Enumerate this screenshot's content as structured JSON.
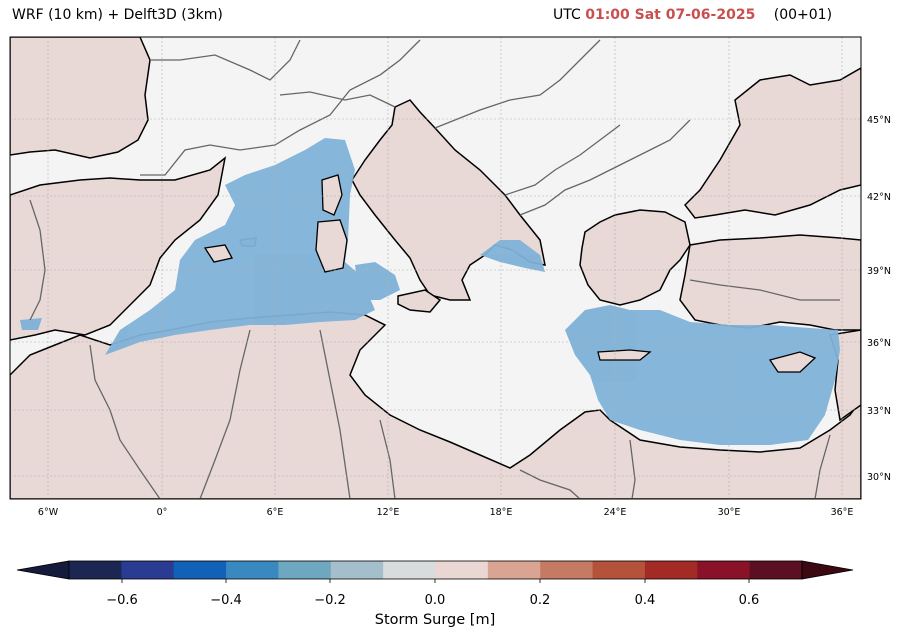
{
  "title_left": "WRF (10 km) + Delft3D (3km)",
  "title_right": {
    "prefix": "UTC",
    "time": "01:00 Sat 07-06-2025",
    "offset": "(00+01)",
    "highlight_color": "#c9504f"
  },
  "map": {
    "region": "Mediterranean Sea",
    "lon_ticks": [
      "6°W",
      "0°",
      "6°E",
      "12°E",
      "18°E",
      "24°E",
      "30°E",
      "36°E"
    ],
    "lat_ticks": [
      "45°N",
      "42°N",
      "39°N",
      "36°N",
      "33°N",
      "30°N"
    ],
    "gridlines": true,
    "colors": {
      "land": "#e8d9d6",
      "sea_surge": "#7fb2d8",
      "background": "#f4f4f4",
      "coastline": "#000000",
      "borders": "#666666"
    }
  },
  "colorbar": {
    "label": "Storm Surge [m]",
    "ticks": [
      "−0.6",
      "−0.4",
      "−0.2",
      "0.0",
      "0.2",
      "0.4",
      "0.6"
    ],
    "colors": [
      "#1b2752",
      "#2a3b92",
      "#1161b8",
      "#3a88c0",
      "#6ea7c0",
      "#a4bfcb",
      "#d9dcdd",
      "#ead6d3",
      "#d9a592",
      "#c57a63",
      "#b4523a",
      "#a42a25",
      "#8a1228",
      "#5a1020"
    ],
    "under_color": "#151b3a",
    "over_color": "#3c0812"
  }
}
